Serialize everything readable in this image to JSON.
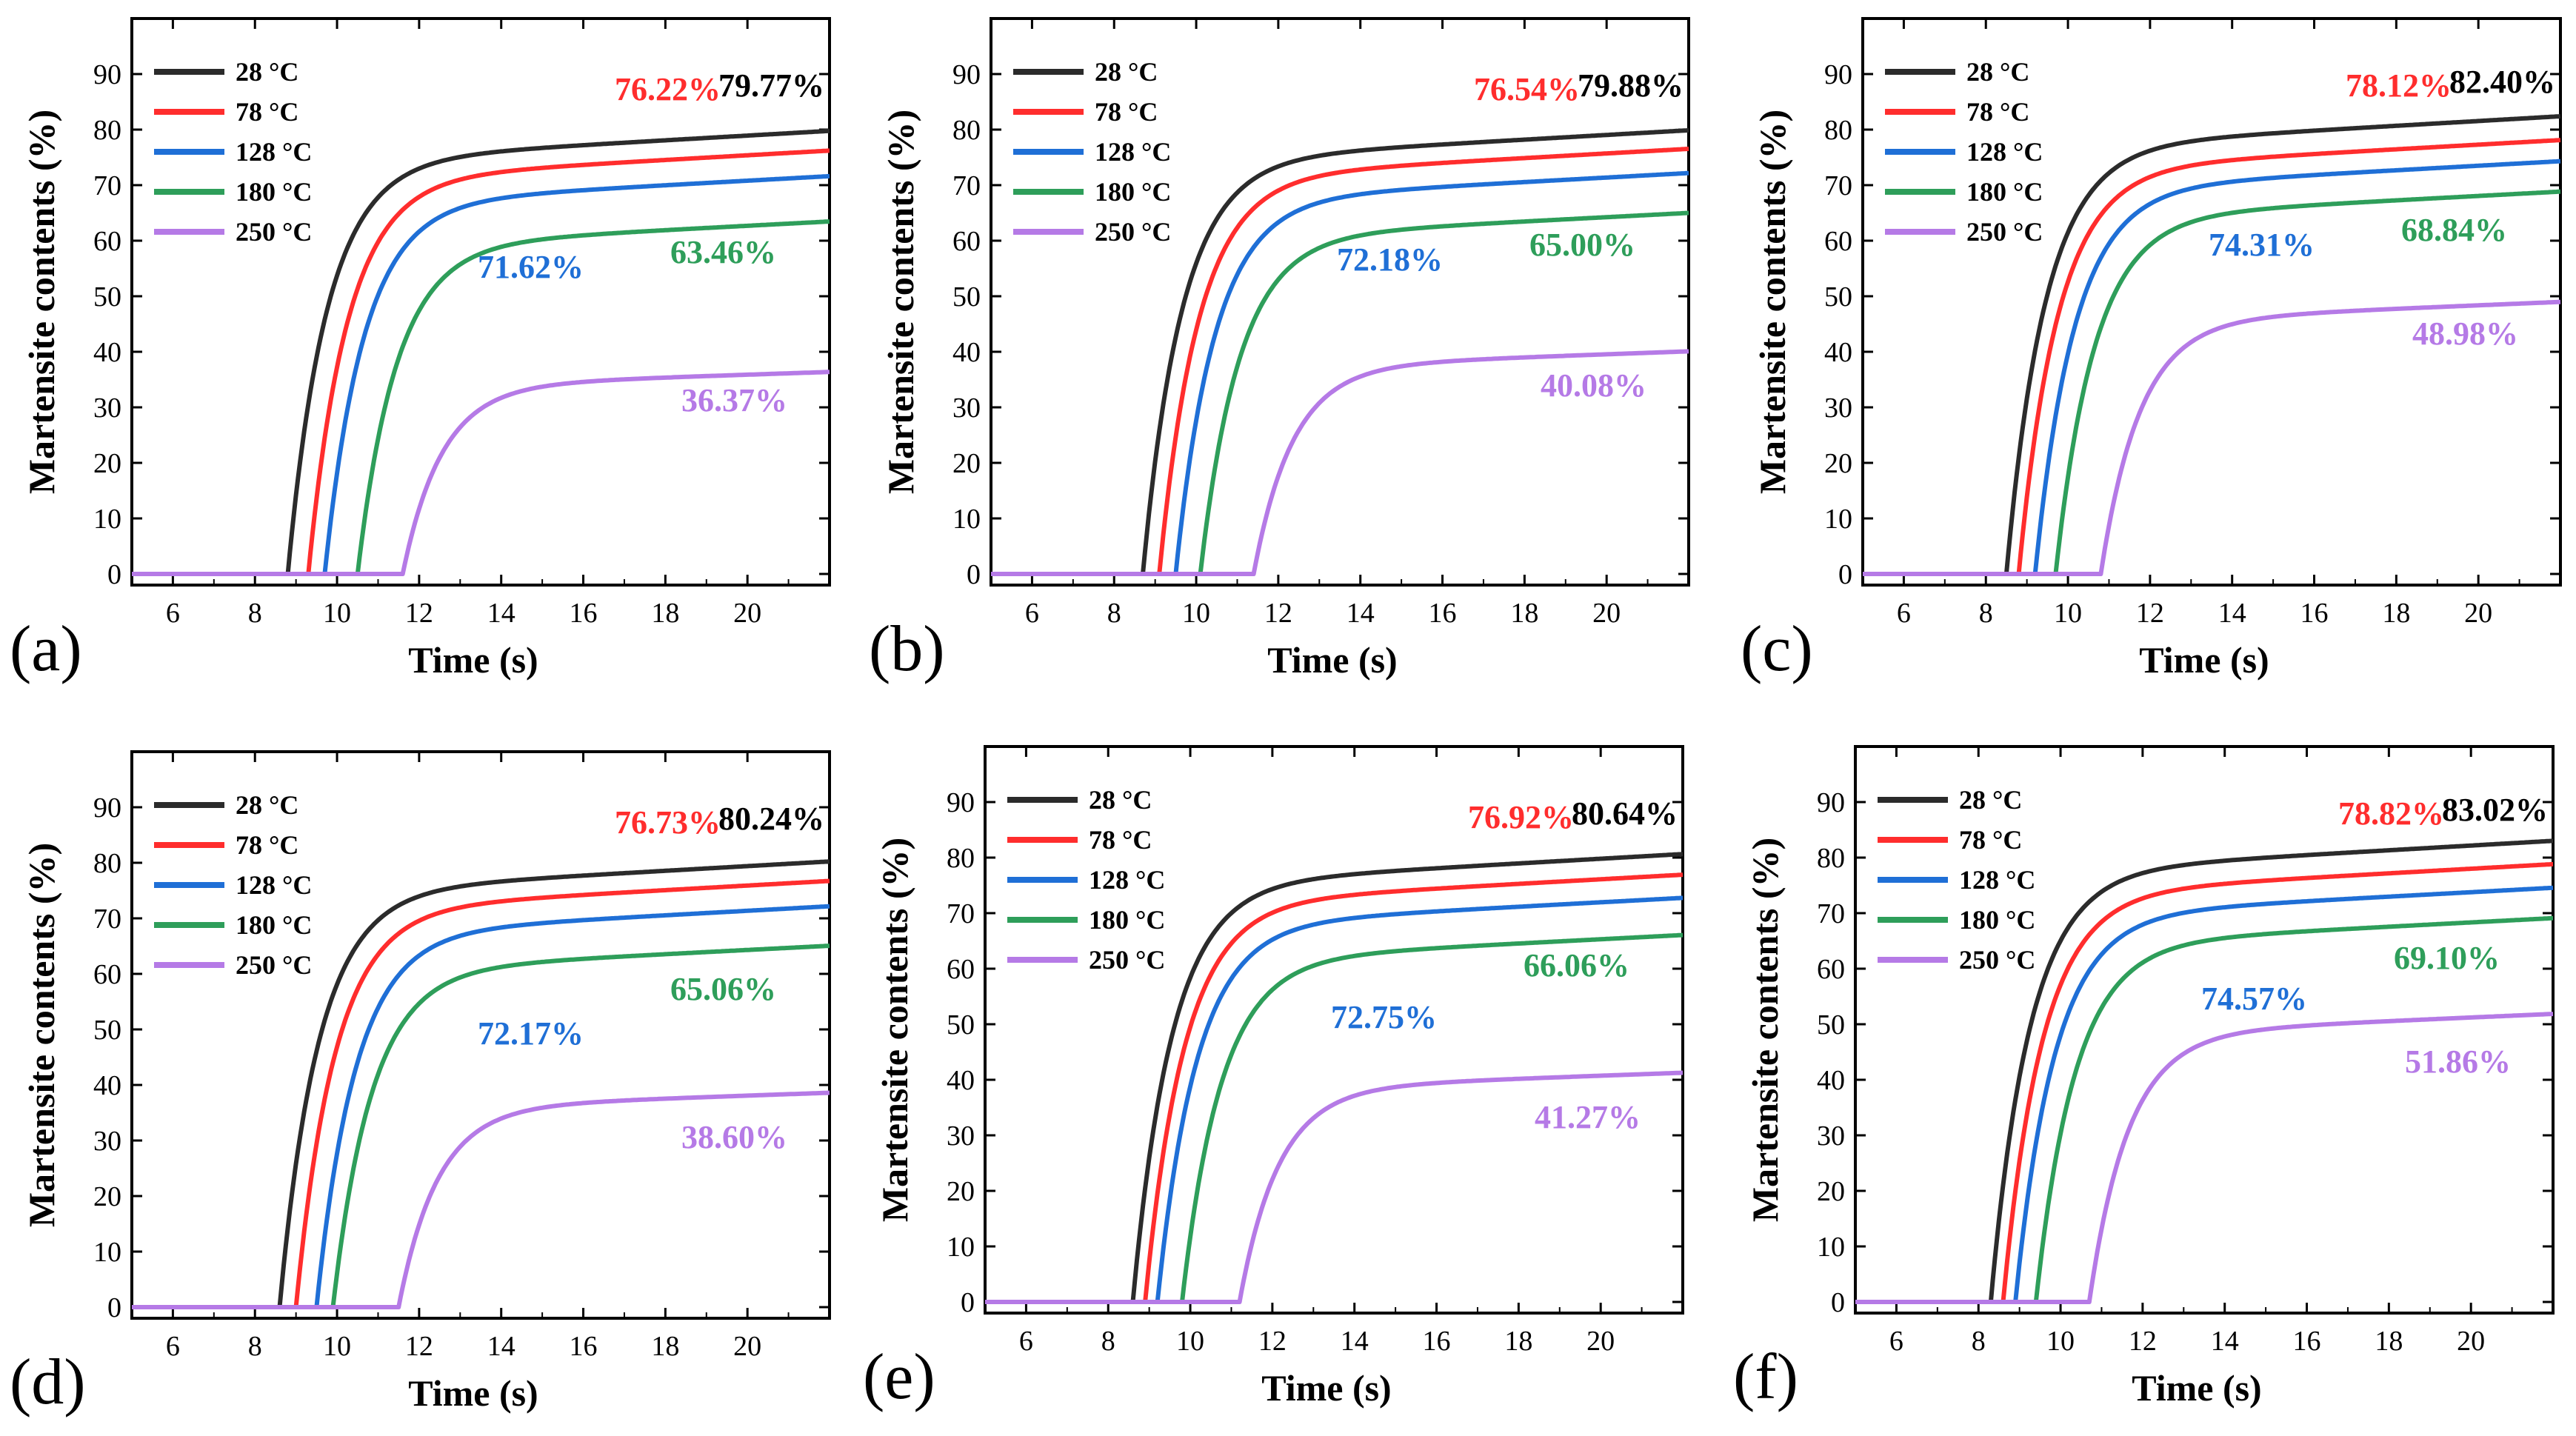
{
  "figure": {
    "xlabel": "Time (s)",
    "ylabel": "Martensite contents (%)",
    "series_colors": [
      "#2b2b2b",
      "#ff2d2d",
      "#1f6fd6",
      "#2e9e5a",
      "#b57ae6"
    ]
  },
  "chart_data": [
    {
      "type": "line",
      "panel_label": "(a)",
      "xlabel": "Time (s)",
      "ylabel": "Martensite contents (%)",
      "xlim": [
        5,
        22
      ],
      "ylim": [
        -2,
        100
      ],
      "xticks": [
        6,
        8,
        10,
        12,
        14,
        16,
        18,
        20
      ],
      "yticks": [
        0,
        10,
        20,
        30,
        40,
        50,
        60,
        70,
        80,
        90
      ],
      "legend_position": "top-left",
      "series": [
        {
          "name": "28 °C",
          "color": "#2b2b2b",
          "start": 8.8,
          "final": 79.77,
          "annotation": "79.77%"
        },
        {
          "name": "78 °C",
          "color": "#ff2d2d",
          "start": 9.3,
          "final": 76.22,
          "annotation": "76.22%"
        },
        {
          "name": "128 °C",
          "color": "#1f6fd6",
          "start": 9.7,
          "final": 71.62,
          "annotation": "71.62%"
        },
        {
          "name": "180 °C",
          "color": "#2e9e5a",
          "start": 10.5,
          "final": 63.46,
          "annotation": "63.46%"
        },
        {
          "name": "250 °C",
          "color": "#b57ae6",
          "start": 11.6,
          "final": 36.37,
          "annotation": "36.37%"
        }
      ]
    },
    {
      "type": "line",
      "panel_label": "(b)",
      "xlabel": "Time (s)",
      "ylabel": "Martensite contents (%)",
      "xlim": [
        5,
        22
      ],
      "ylim": [
        -2,
        100
      ],
      "xticks": [
        6,
        8,
        10,
        12,
        14,
        16,
        18,
        20
      ],
      "yticks": [
        0,
        10,
        20,
        30,
        40,
        50,
        60,
        70,
        80,
        90
      ],
      "legend_position": "top-left",
      "series": [
        {
          "name": "28 °C",
          "color": "#2b2b2b",
          "start": 8.7,
          "final": 79.88,
          "annotation": "79.88%"
        },
        {
          "name": "78 °C",
          "color": "#ff2d2d",
          "start": 9.1,
          "final": 76.54,
          "annotation": "76.54%"
        },
        {
          "name": "128 °C",
          "color": "#1f6fd6",
          "start": 9.5,
          "final": 72.18,
          "annotation": "72.18%"
        },
        {
          "name": "180 °C",
          "color": "#2e9e5a",
          "start": 10.1,
          "final": 65.0,
          "annotation": "65.00%"
        },
        {
          "name": "250 °C",
          "color": "#b57ae6",
          "start": 11.4,
          "final": 40.08,
          "annotation": "40.08%"
        }
      ]
    },
    {
      "type": "line",
      "panel_label": "(c)",
      "xlabel": "Time (s)",
      "ylabel": "Martensite contents (%)",
      "xlim": [
        5,
        22
      ],
      "ylim": [
        -2,
        100
      ],
      "xticks": [
        6,
        8,
        10,
        12,
        14,
        16,
        18,
        20
      ],
      "yticks": [
        0,
        10,
        20,
        30,
        40,
        50,
        60,
        70,
        80,
        90
      ],
      "legend_position": "top-left",
      "series": [
        {
          "name": "28 °C",
          "color": "#2b2b2b",
          "start": 8.5,
          "final": 82.4,
          "annotation": "82.40%"
        },
        {
          "name": "78 °C",
          "color": "#ff2d2d",
          "start": 8.8,
          "final": 78.12,
          "annotation": "78.12%"
        },
        {
          "name": "128 °C",
          "color": "#1f6fd6",
          "start": 9.2,
          "final": 74.31,
          "annotation": "74.31%"
        },
        {
          "name": "180 °C",
          "color": "#2e9e5a",
          "start": 9.7,
          "final": 68.84,
          "annotation": "68.84%"
        },
        {
          "name": "250 °C",
          "color": "#b57ae6",
          "start": 10.8,
          "final": 48.98,
          "annotation": "48.98%"
        }
      ]
    },
    {
      "type": "line",
      "panel_label": "(d)",
      "xlabel": "Time (s)",
      "ylabel": "Martensite contents (%)",
      "xlim": [
        5,
        22
      ],
      "ylim": [
        -2,
        100
      ],
      "xticks": [
        6,
        8,
        10,
        12,
        14,
        16,
        18,
        20
      ],
      "yticks": [
        0,
        10,
        20,
        30,
        40,
        50,
        60,
        70,
        80,
        90
      ],
      "legend_position": "top-left",
      "series": [
        {
          "name": "28 °C",
          "color": "#2b2b2b",
          "start": 8.6,
          "final": 80.24,
          "annotation": "80.24%"
        },
        {
          "name": "78 °C",
          "color": "#ff2d2d",
          "start": 9.0,
          "final": 76.73,
          "annotation": "76.73%"
        },
        {
          "name": "128 °C",
          "color": "#1f6fd6",
          "start": 9.5,
          "final": 72.17,
          "annotation": "72.17%"
        },
        {
          "name": "180 °C",
          "color": "#2e9e5a",
          "start": 9.9,
          "final": 65.06,
          "annotation": "65.06%"
        },
        {
          "name": "250 °C",
          "color": "#b57ae6",
          "start": 11.5,
          "final": 38.6,
          "annotation": "38.60%"
        }
      ]
    },
    {
      "type": "line",
      "panel_label": "(e)",
      "xlabel": "Time (s)",
      "ylabel": "Martensite contents (%)",
      "xlim": [
        5,
        22
      ],
      "ylim": [
        -2,
        100
      ],
      "xticks": [
        6,
        8,
        10,
        12,
        14,
        16,
        18,
        20
      ],
      "yticks": [
        0,
        10,
        20,
        30,
        40,
        50,
        60,
        70,
        80,
        90
      ],
      "legend_position": "top-left",
      "series": [
        {
          "name": "28 °C",
          "color": "#2b2b2b",
          "start": 8.6,
          "final": 80.64,
          "annotation": "80.64%"
        },
        {
          "name": "78 °C",
          "color": "#ff2d2d",
          "start": 8.9,
          "final": 76.92,
          "annotation": "76.92%"
        },
        {
          "name": "128 °C",
          "color": "#1f6fd6",
          "start": 9.2,
          "final": 72.75,
          "annotation": "72.75%"
        },
        {
          "name": "180 °C",
          "color": "#2e9e5a",
          "start": 9.8,
          "final": 66.06,
          "annotation": "66.06%"
        },
        {
          "name": "250 °C",
          "color": "#b57ae6",
          "start": 11.2,
          "final": 41.27,
          "annotation": "41.27%"
        }
      ]
    },
    {
      "type": "line",
      "panel_label": "(f)",
      "xlabel": "Time (s)",
      "ylabel": "Martensite contents (%)",
      "xlim": [
        5,
        22
      ],
      "ylim": [
        -2,
        100
      ],
      "xticks": [
        6,
        8,
        10,
        12,
        14,
        16,
        18,
        20
      ],
      "yticks": [
        0,
        10,
        20,
        30,
        40,
        50,
        60,
        70,
        80,
        90
      ],
      "legend_position": "top-left",
      "series": [
        {
          "name": "28 °C",
          "color": "#2b2b2b",
          "start": 8.3,
          "final": 83.02,
          "annotation": "83.02%"
        },
        {
          "name": "78 °C",
          "color": "#ff2d2d",
          "start": 8.6,
          "final": 78.82,
          "annotation": "78.82%"
        },
        {
          "name": "128 °C",
          "color": "#1f6fd6",
          "start": 8.9,
          "final": 74.57,
          "annotation": "74.57%"
        },
        {
          "name": "180 °C",
          "color": "#2e9e5a",
          "start": 9.4,
          "final": 69.1,
          "annotation": "69.10%"
        },
        {
          "name": "250 °C",
          "color": "#b57ae6",
          "start": 10.7,
          "final": 51.86,
          "annotation": "51.86%"
        }
      ]
    }
  ]
}
